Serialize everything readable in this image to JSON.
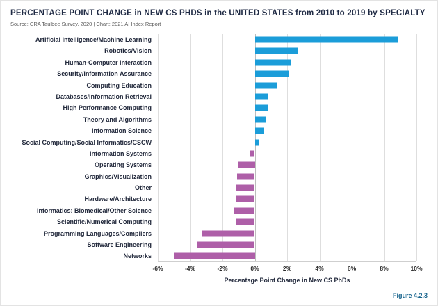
{
  "header": {
    "title": "PERCENTAGE POINT CHANGE in NEW CS PHDS in the UNITED STATES from 2010 to 2019 by SPECIALTY",
    "source": "Source: CRA Taulbee Survey, 2020 | Chart: 2021 AI Index Report"
  },
  "figure_label": "Figure 4.2.3",
  "colors": {
    "positive": "#1b9dd9",
    "negative": "#ae5fa8",
    "title": "#1f2a44",
    "figure": "#17648d"
  },
  "chart_data": {
    "type": "bar",
    "orientation": "horizontal",
    "title": "PERCENTAGE POINT CHANGE in NEW CS PHDS in the UNITED STATES from 2010 to 2019 by SPECIALTY",
    "categories": [
      "Artificial Intelligence/Machine Learning",
      "Robotics/Vision",
      "Human-Computer Interaction",
      "Security/Information Assurance",
      "Computing Education",
      "Databases/Information Retrieval",
      "High Performance Computing",
      "Theory and Algorithms",
      "Information Science",
      "Social Computing/Social Informatics/CSCW",
      "Information Systems",
      "Operating Systems",
      "Graphics/Visualization",
      "Other",
      "Hardware/Architecture",
      "Informatics: Biomedical/Other Science",
      "Scientific/Numerical Computing",
      "Programming Languages/Compilers",
      "Software Engineering",
      "Networks"
    ],
    "values": [
      8.9,
      2.7,
      2.2,
      2.1,
      1.4,
      0.8,
      0.8,
      0.7,
      0.6,
      0.3,
      -0.3,
      -1.0,
      -1.1,
      -1.2,
      -1.2,
      -1.3,
      -1.2,
      -3.3,
      -3.6,
      -5.0
    ],
    "xlabel": "Percentage Point Change in New CS PhDs",
    "ylabel": "",
    "xlim": [
      -6,
      10
    ],
    "xticks": [
      -6,
      -4,
      -2,
      0,
      2,
      4,
      6,
      8,
      10
    ],
    "xtick_labels": [
      "-6%",
      "-4%",
      "-2%",
      "0%",
      "2%",
      "4%",
      "6%",
      "8%",
      "10%"
    ],
    "grid": true,
    "legend": "none"
  }
}
